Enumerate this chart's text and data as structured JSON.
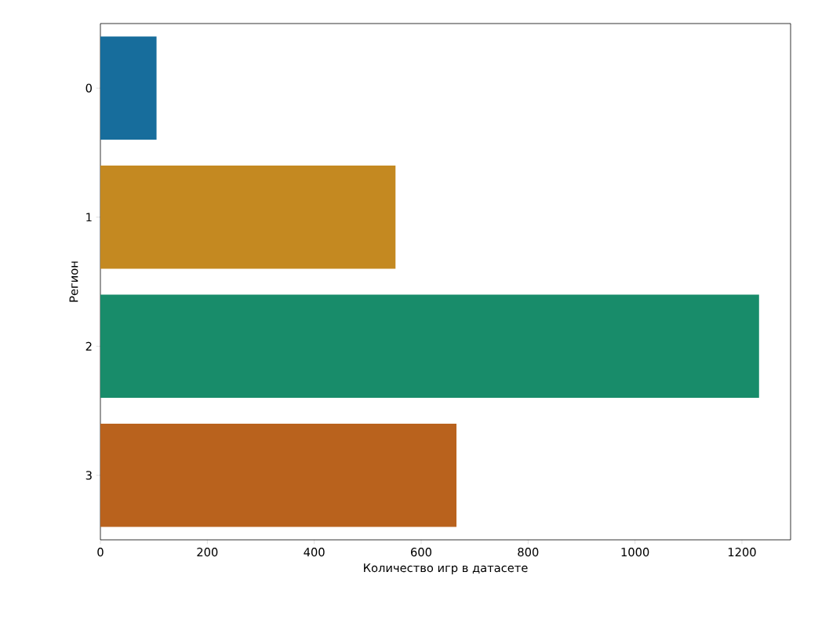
{
  "chart_data": {
    "type": "bar",
    "orientation": "horizontal",
    "categories": [
      "0",
      "1",
      "2",
      "3"
    ],
    "values": [
      105,
      552,
      1232,
      666
    ],
    "colors": [
      "#176d9c",
      "#c48921",
      "#188c6a",
      "#b9621d"
    ],
    "xlim": [
      0,
      1291
    ],
    "xticks": [
      0,
      200,
      400,
      600,
      800,
      1000,
      1200
    ],
    "xlabel": "Количество игр в датасете",
    "ylabel": "Регион"
  }
}
